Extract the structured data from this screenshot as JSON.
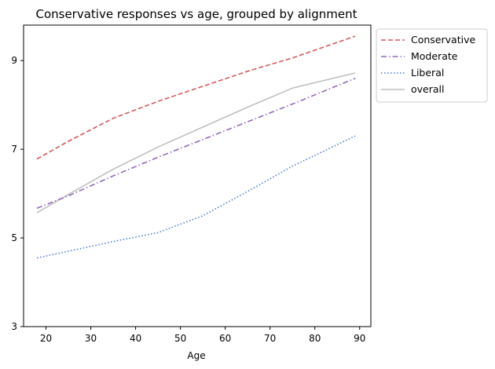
{
  "chart_data": {
    "type": "line",
    "title": "Conservative responses vs age, grouped by alignment",
    "xlabel": "Age",
    "ylabel": "",
    "xlim": [
      15,
      92.5
    ],
    "ylim": [
      3,
      9.8
    ],
    "xticks": [
      20,
      30,
      40,
      50,
      60,
      70,
      80,
      90
    ],
    "yticks": [
      3,
      5,
      7,
      9
    ],
    "legend_position": "outside top-right",
    "grid": false,
    "x": [
      18,
      25,
      35,
      45,
      55,
      65,
      75,
      89
    ],
    "series": [
      {
        "name": "Conservative",
        "color": "#d65a5a",
        "style": "dashed",
        "values": [
          6.78,
          7.18,
          7.7,
          8.08,
          8.42,
          8.76,
          9.06,
          9.55
        ]
      },
      {
        "name": "Moderate",
        "color": "#9467bd",
        "style": "dashdot",
        "values": [
          5.67,
          5.95,
          6.4,
          6.82,
          7.22,
          7.62,
          8.02,
          8.6
        ]
      },
      {
        "name": "Liberal",
        "color": "#4a7fc9",
        "style": "dotted",
        "values": [
          4.55,
          4.7,
          4.92,
          5.12,
          5.5,
          6.05,
          6.62,
          7.3
        ]
      },
      {
        "name": "overall",
        "color": "#bfbfbf",
        "style": "solid",
        "values": [
          5.57,
          5.98,
          6.55,
          7.05,
          7.5,
          7.95,
          8.38,
          8.72
        ]
      }
    ]
  }
}
